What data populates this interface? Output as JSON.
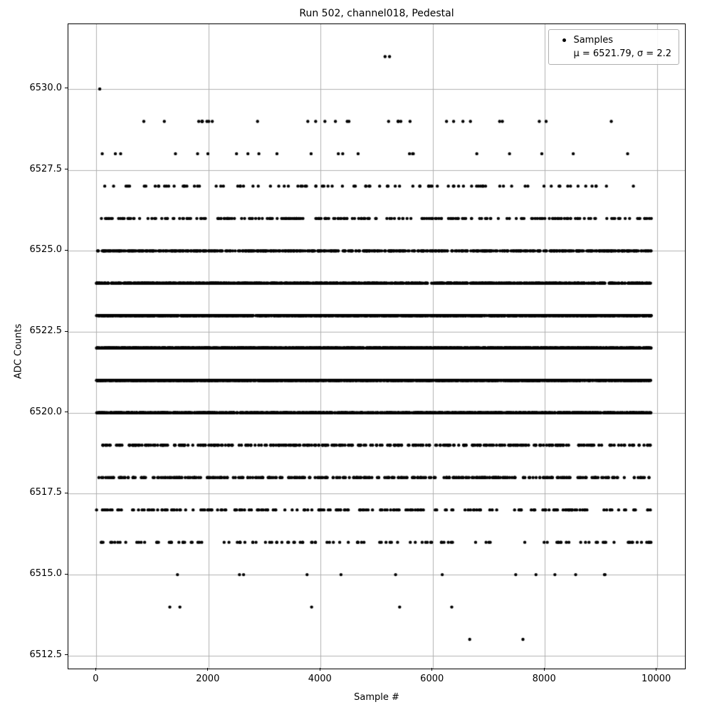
{
  "title": "Run 502, channel018, Pedestal",
  "axes": {
    "xlabel": "Sample #",
    "ylabel": "ADC Counts",
    "xlim": [
      -500,
      10500
    ],
    "ylim": [
      6512.1,
      6532.0
    ],
    "x_ticks": [
      0,
      2000,
      4000,
      6000,
      8000,
      10000
    ],
    "x_tick_labels": [
      "0",
      "2000",
      "4000",
      "6000",
      "8000",
      "10000"
    ],
    "y_ticks": [
      6512.5,
      6515.0,
      6517.5,
      6520.0,
      6522.5,
      6525.0,
      6527.5,
      6530.0
    ],
    "y_tick_labels": [
      "6512.5",
      "6515.0",
      "6517.5",
      "6520.0",
      "6522.5",
      "6525.0",
      "6527.5",
      "6530.0"
    ],
    "grid": true,
    "grid_color": "#b0b0b0"
  },
  "legend": {
    "position": "upper right",
    "entries": [
      {
        "label": "Samples",
        "marker": "dot"
      },
      {
        "label": "μ = 6521.79, σ = 2.2",
        "marker": "none"
      }
    ]
  },
  "chart_data": {
    "type": "scatter",
    "title": "Run 502, channel018, Pedestal",
    "xlabel": "Sample #",
    "ylabel": "ADC Counts",
    "xlim": [
      -500,
      10500
    ],
    "ylim": [
      6512.1,
      6532.0
    ],
    "grid": true,
    "legend_position": "upper right",
    "stats": {
      "mean": 6521.79,
      "sigma": 2.2
    },
    "x_range": [
      0,
      9900
    ],
    "marker": {
      "color": "#000000",
      "radius": 2.2
    },
    "seed": 1337,
    "adc_bands": [
      {
        "adc": 6531,
        "x": [
          5150,
          5230
        ]
      },
      {
        "adc": 6530,
        "x": [
          60
        ]
      },
      {
        "adc": 6529,
        "count": 30
      },
      {
        "adc": 6528,
        "count": 22
      },
      {
        "adc": 6527,
        "count": 95
      },
      {
        "adc": 6526,
        "count": 235
      },
      {
        "adc": 6525,
        "count": 680
      },
      {
        "adc": 6524,
        "count": 1080
      },
      {
        "adc": 6523,
        "count": 1520
      },
      {
        "adc": 6522,
        "count": 1780
      },
      {
        "adc": 6521,
        "count": 1660
      },
      {
        "adc": 6520,
        "count": 1250
      },
      {
        "adc": 6519,
        "count": 340
      },
      {
        "adc": 6518,
        "count": 370
      },
      {
        "adc": 6517,
        "count": 195
      },
      {
        "adc": 6516,
        "count": 120
      },
      {
        "adc": 6515,
        "count": 13
      },
      {
        "adc": 6514,
        "x": [
          1310,
          1490,
          3840,
          5410,
          6340
        ]
      },
      {
        "adc": 6513,
        "x": [
          6660,
          7610
        ]
      }
    ]
  }
}
